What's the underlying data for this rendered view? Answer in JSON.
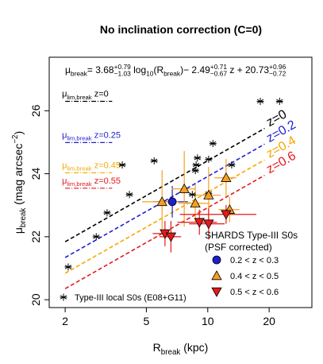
{
  "chart_data": {
    "type": "scatter",
    "title": "No inclination correction (C=0)",
    "xscale": "log",
    "xlim": [
      1.67,
      32.4
    ],
    "ylim": [
      19.75,
      27.7
    ],
    "xticks": [
      2,
      5,
      10,
      20
    ],
    "yticks": [
      20,
      22,
      24,
      26
    ],
    "x_label": [
      {
        "text": "R"
      },
      {
        "sub": "break"
      },
      {
        "text": " (kpc)"
      }
    ],
    "y_label": [
      {
        "text": "μ"
      },
      {
        "sub": "break"
      },
      {
        "text": " (mag arcsec"
      },
      {
        "sup": "−2"
      },
      {
        "text": ")"
      }
    ],
    "formula": [
      {
        "text": "μ"
      },
      {
        "sub": "break"
      },
      {
        "text": "= 3.68"
      },
      {
        "sup": "+0.79",
        "sub": "−1.03"
      },
      {
        "text": " log"
      },
      {
        "sub": "10"
      },
      {
        "text": "(R"
      },
      {
        "sub": "break"
      },
      {
        "text": ")− 2.49"
      },
      {
        "sup": "+0.71",
        "sub": "−0.67"
      },
      {
        "text": " z + 20.73"
      },
      {
        "sup": "+0.96",
        "sub": "−0.72"
      }
    ],
    "lines": [
      {
        "name": "z=0",
        "color": "#000000",
        "x": [
          2,
          19
        ],
        "values": [
          21.84,
          25.44
        ]
      },
      {
        "name": "z=0.2",
        "color": "#1f1fd0",
        "x": [
          2,
          19
        ],
        "values": [
          21.34,
          24.94
        ]
      },
      {
        "name": "z=0.4",
        "color": "#f5a800",
        "x": [
          2,
          19
        ],
        "values": [
          20.84,
          24.44
        ]
      },
      {
        "name": "z=0.6",
        "color": "#e41a1c",
        "x": [
          2,
          19
        ],
        "values": [
          20.35,
          23.95
        ]
      }
    ],
    "limits": [
      {
        "parts": [
          {
            "text": "μ"
          },
          {
            "sub": "lim,break"
          },
          {
            "text": " z=0"
          }
        ],
        "color": "#000000",
        "value": 26.3
      },
      {
        "parts": [
          {
            "text": "μ"
          },
          {
            "sub": "lim,break"
          },
          {
            "text": " z=0.25"
          }
        ],
        "color": "#1f1fd0",
        "value": 24.99
      },
      {
        "parts": [
          {
            "text": "μ"
          },
          {
            "sub": "lim,break"
          },
          {
            "text": " z=0.45"
          }
        ],
        "color": "#f5a800",
        "value": 24.03
      },
      {
        "parts": [
          {
            "text": "μ"
          },
          {
            "sub": "lim,break"
          },
          {
            "text": " z=0.55"
          }
        ],
        "color": "#e41a1c",
        "value": 23.54
      }
    ],
    "limits_x": [
      2,
      3.4
    ],
    "legend_title": [
      "SHARDS Type-III S0s",
      "(PSF corrected)"
    ],
    "series": [
      {
        "name": "Type-III local S0s (E08+G11)",
        "marker": "star",
        "color": "#000000",
        "x": [
          2.07,
          2.84,
          3.21,
          3.81,
          4.13,
          5.46,
          8.77,
          8.9,
          8.7,
          10.1,
          10.6,
          8.4,
          10.1,
          13.1,
          18.1,
          22.5
        ],
        "values": [
          21.04,
          22.0,
          22.76,
          24.28,
          23.34,
          24.41,
          24.28,
          24.5,
          24.1,
          24.46,
          24.96,
          23.34,
          23.37,
          24.28,
          26.3,
          26.3
        ]
      },
      {
        "name": "0.2 < z < 0.3",
        "marker": "circle",
        "color": "#1f1fd0",
        "x": [
          6.7
        ],
        "values": [
          23.11
        ],
        "xerr": [
          1.3
        ],
        "yerr": [
          0.5
        ]
      },
      {
        "name": "0.4 < z < 0.5",
        "marker": "triangle",
        "color": "#f5a020",
        "x": [
          5.97,
          7.67,
          8.69,
          10.1,
          12.3,
          12.8
        ],
        "values": [
          23.11,
          23.52,
          23.06,
          23.32,
          23.87,
          22.86
        ],
        "xerr": [
          1.2,
          1.0,
          1.5,
          1.5,
          1.5,
          1.5
        ],
        "yerr": [
          1.0,
          1.2,
          0.6,
          0.9,
          0.6,
          0.4
        ]
      },
      {
        "name": "0.5 < z < 0.6",
        "marker": "triangle-down",
        "color": "#e41a1c",
        "x": [
          6.17,
          6.6,
          9.1,
          10.1,
          12.3
        ],
        "values": [
          22.1,
          22.0,
          22.46,
          22.41,
          22.71
        ],
        "xerr": [
          0.8,
          0.8,
          2.0,
          2.0,
          5.0
        ],
        "yerr": [
          0.4,
          0.5,
          0.4,
          0.5,
          0.3
        ]
      }
    ]
  }
}
